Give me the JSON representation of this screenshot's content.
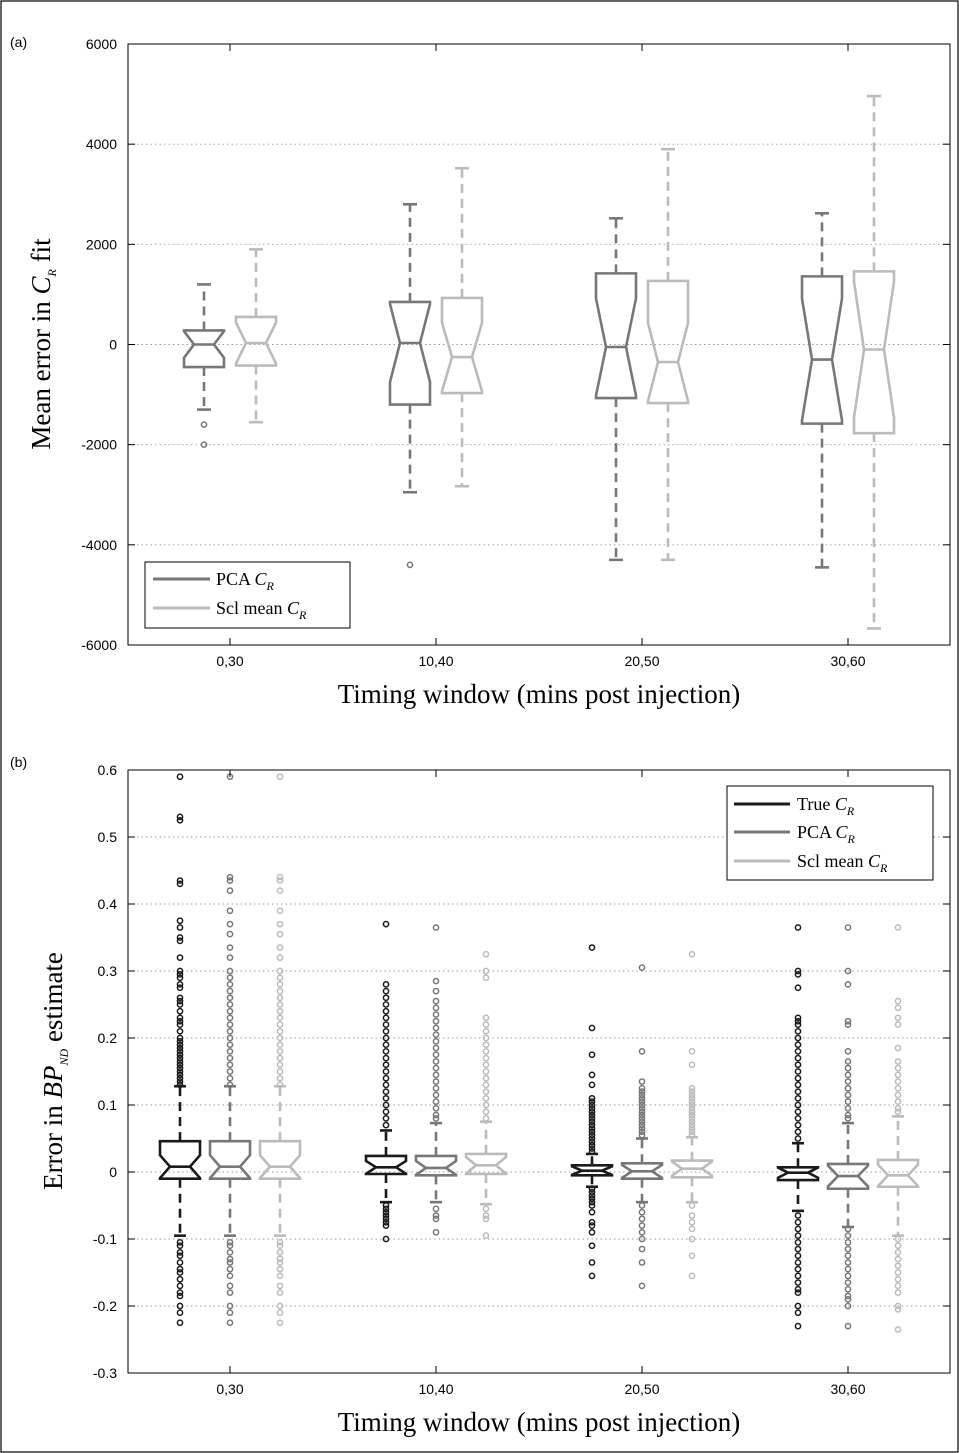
{
  "chart_data": [
    {
      "panel_label": "(a)",
      "type": "boxplot",
      "notched": true,
      "categories": [
        "0,30",
        "10,40",
        "20,50",
        "30,60"
      ],
      "xlabel": "Timing window (mins post injection)",
      "ylabel": {
        "prefix": "Mean error in ",
        "italic": "C",
        "sub": "R",
        "suffix": " fit"
      },
      "ylim": [
        -6000,
        6000
      ],
      "yticks": [
        6000,
        4000,
        2000,
        0,
        -2000,
        -4000,
        -6000
      ],
      "ytick_labels": [
        "6000",
        "4000",
        "2000",
        "0",
        "-2000",
        "-4000",
        "-6000"
      ],
      "grid": "horizontal dotted",
      "legend_position": "bottom-left",
      "legend": [
        {
          "prefix": "PCA ",
          "italic": "C",
          "sub": "R",
          "color": "#777777"
        },
        {
          "prefix": "Scl mean ",
          "italic": "C",
          "sub": "R",
          "color": "#bbbbbb"
        }
      ],
      "series": [
        {
          "color": "#777777",
          "boxes": [
            {
              "whisker_low": -1300,
              "q1": -450,
              "median": 0,
              "q3": 280,
              "whisker_high": 1200,
              "outliers": [
                -1600,
                -2000
              ]
            },
            {
              "whisker_low": -2950,
              "q1": -1200,
              "median": 30,
              "q3": 850,
              "whisker_high": 2800,
              "outliers": [
                -4400
              ]
            },
            {
              "whisker_low": -4300,
              "q1": -1070,
              "median": -50,
              "q3": 1420,
              "whisker_high": 2520,
              "outliers": []
            },
            {
              "whisker_low": -4450,
              "q1": -1580,
              "median": -300,
              "q3": 1360,
              "whisker_high": 2620,
              "outliers": []
            }
          ]
        },
        {
          "color": "#bbbbbb",
          "boxes": [
            {
              "whisker_low": -1550,
              "q1": -420,
              "median": 30,
              "q3": 550,
              "whisker_high": 1900,
              "outliers": []
            },
            {
              "whisker_low": -2830,
              "q1": -970,
              "median": -250,
              "q3": 930,
              "whisker_high": 3520,
              "outliers": []
            },
            {
              "whisker_low": -4300,
              "q1": -1170,
              "median": -350,
              "q3": 1270,
              "whisker_high": 3900,
              "outliers": []
            },
            {
              "whisker_low": -5670,
              "q1": -1770,
              "median": -100,
              "q3": 1460,
              "whisker_high": 4960,
              "outliers": []
            }
          ]
        }
      ]
    },
    {
      "panel_label": "(b)",
      "type": "boxplot",
      "notched": true,
      "categories": [
        "0,30",
        "10,40",
        "20,50",
        "30,60"
      ],
      "xlabel": "Timing window (mins post injection)",
      "ylabel": {
        "prefix": "Error in ",
        "italic": "BP",
        "sub": "ND",
        "suffix": " estimate"
      },
      "ylim": [
        -0.3,
        0.6
      ],
      "yticks": [
        0.6,
        0.5,
        0.4,
        0.3,
        0.2,
        0.1,
        0,
        -0.1,
        -0.2,
        -0.3
      ],
      "ytick_labels": [
        "0.6",
        "0.5",
        "0.4",
        "0.3",
        "0.2",
        "0.1",
        "0",
        "-0.1",
        "-0.2",
        "-0.3"
      ],
      "grid": "horizontal dotted",
      "legend_position": "top-right",
      "legend": [
        {
          "prefix": "True ",
          "italic": "C",
          "sub": "R",
          "color": "#1a1a1a"
        },
        {
          "prefix": "PCA ",
          "italic": "C",
          "sub": "R",
          "color": "#777777"
        },
        {
          "prefix": "Scl mean ",
          "italic": "C",
          "sub": "R",
          "color": "#bbbbbb"
        }
      ],
      "series": [
        {
          "color": "#1a1a1a",
          "boxes": [
            {
              "whisker_low": -0.095,
              "q1": -0.01,
              "median": 0.008,
              "q3": 0.046,
              "whisker_high": 0.128,
              "outliers_high": [
                0.59,
                0.53,
                0.525,
                0.435,
                0.43,
                0.375,
                0.365,
                0.35,
                0.345,
                0.32,
                0.3,
                0.295,
                0.29,
                0.28,
                0.275,
                0.26,
                0.255,
                0.25,
                0.24,
                0.23,
                0.225,
                0.22,
                0.21,
                0.2,
                0.195,
                0.19,
                0.185,
                0.18,
                0.175,
                0.17,
                0.165,
                0.16,
                0.155,
                0.15,
                0.145,
                0.14,
                0.135,
                0.13
              ],
              "outliers_low": [
                -0.105,
                -0.11,
                -0.12,
                -0.125,
                -0.135,
                -0.145,
                -0.15,
                -0.16,
                -0.17,
                -0.18,
                -0.185,
                -0.2,
                -0.21,
                -0.225
              ]
            },
            {
              "whisker_low": -0.045,
              "q1": -0.003,
              "median": 0.007,
              "q3": 0.024,
              "whisker_high": 0.062,
              "outliers_high": [
                0.37,
                0.28,
                0.27,
                0.26,
                0.25,
                0.24,
                0.23,
                0.22,
                0.21,
                0.2,
                0.19,
                0.18,
                0.17,
                0.16,
                0.15,
                0.14,
                0.13,
                0.12,
                0.11,
                0.1,
                0.09,
                0.08,
                0.07
              ],
              "outliers_low": [
                -0.05,
                -0.055,
                -0.06,
                -0.065,
                -0.07,
                -0.075,
                -0.08,
                -0.1
              ]
            },
            {
              "whisker_low": -0.022,
              "q1": -0.005,
              "median": 0.002,
              "q3": 0.01,
              "whisker_high": 0.027,
              "outliers_high": [
                0.335,
                0.215,
                0.175,
                0.145,
                0.13,
                0.11,
                0.105,
                0.1,
                0.095,
                0.09,
                0.085,
                0.08,
                0.075,
                0.07,
                0.065,
                0.06,
                0.055,
                0.05,
                0.045,
                0.04,
                0.035,
                0.03
              ],
              "outliers_low": [
                -0.025,
                -0.03,
                -0.035,
                -0.04,
                -0.045,
                -0.05,
                -0.06,
                -0.075,
                -0.08,
                -0.09,
                -0.11,
                -0.135,
                -0.155
              ]
            },
            {
              "whisker_low": -0.058,
              "q1": -0.012,
              "median": -0.001,
              "q3": 0.007,
              "whisker_high": 0.043,
              "outliers_high": [
                0.365,
                0.3,
                0.295,
                0.275,
                0.23,
                0.225,
                0.22,
                0.21,
                0.2,
                0.19,
                0.18,
                0.17,
                0.16,
                0.15,
                0.14,
                0.13,
                0.12,
                0.11,
                0.1,
                0.09,
                0.08,
                0.07,
                0.06,
                0.05
              ],
              "outliers_low": [
                -0.065,
                -0.075,
                -0.085,
                -0.095,
                -0.105,
                -0.115,
                -0.125,
                -0.135,
                -0.145,
                -0.155,
                -0.165,
                -0.175,
                -0.18,
                -0.2,
                -0.21,
                -0.23
              ]
            }
          ]
        },
        {
          "color": "#777777",
          "boxes": [
            {
              "whisker_low": -0.095,
              "q1": -0.01,
              "median": 0.008,
              "q3": 0.046,
              "whisker_high": 0.128,
              "outliers_high": [
                0.59,
                0.44,
                0.435,
                0.42,
                0.39,
                0.37,
                0.355,
                0.335,
                0.32,
                0.3,
                0.29,
                0.28,
                0.27,
                0.26,
                0.25,
                0.24,
                0.23,
                0.22,
                0.21,
                0.2,
                0.19,
                0.18,
                0.17,
                0.16,
                0.15,
                0.14,
                0.13
              ],
              "outliers_low": [
                -0.105,
                -0.11,
                -0.12,
                -0.13,
                -0.135,
                -0.145,
                -0.155,
                -0.17,
                -0.18,
                -0.2,
                -0.21,
                -0.225
              ]
            },
            {
              "whisker_low": -0.045,
              "q1": -0.005,
              "median": 0.006,
              "q3": 0.024,
              "whisker_high": 0.073,
              "outliers_high": [
                0.365,
                0.285,
                0.27,
                0.255,
                0.245,
                0.235,
                0.225,
                0.215,
                0.205,
                0.195,
                0.185,
                0.175,
                0.165,
                0.155,
                0.145,
                0.135,
                0.125,
                0.115,
                0.105,
                0.095,
                0.085,
                0.08
              ],
              "outliers_low": [
                -0.055,
                -0.065,
                -0.07,
                -0.09
              ]
            },
            {
              "whisker_low": -0.045,
              "q1": -0.01,
              "median": 0.001,
              "q3": 0.013,
              "whisker_high": 0.05,
              "outliers_high": [
                0.305,
                0.18,
                0.135,
                0.125,
                0.12,
                0.115,
                0.11,
                0.105,
                0.1,
                0.095,
                0.09,
                0.085,
                0.08,
                0.075,
                0.07,
                0.065,
                0.06,
                0.055
              ],
              "outliers_low": [
                -0.05,
                -0.06,
                -0.07,
                -0.08,
                -0.09,
                -0.1,
                -0.115,
                -0.135,
                -0.17
              ]
            },
            {
              "whisker_low": -0.082,
              "q1": -0.025,
              "median": -0.006,
              "q3": 0.012,
              "whisker_high": 0.073,
              "outliers_high": [
                0.365,
                0.3,
                0.28,
                0.225,
                0.22,
                0.18,
                0.165,
                0.155,
                0.145,
                0.135,
                0.125,
                0.115,
                0.105,
                0.095,
                0.085,
                0.08
              ],
              "outliers_low": [
                -0.085,
                -0.095,
                -0.105,
                -0.115,
                -0.125,
                -0.135,
                -0.145,
                -0.155,
                -0.165,
                -0.175,
                -0.185,
                -0.19,
                -0.2,
                -0.23
              ]
            }
          ]
        },
        {
          "color": "#bbbbbb",
          "boxes": [
            {
              "whisker_low": -0.095,
              "q1": -0.01,
              "median": 0.008,
              "q3": 0.046,
              "whisker_high": 0.128,
              "outliers_high": [
                0.59,
                0.44,
                0.435,
                0.42,
                0.39,
                0.37,
                0.355,
                0.335,
                0.32,
                0.3,
                0.29,
                0.28,
                0.27,
                0.26,
                0.25,
                0.24,
                0.23,
                0.22,
                0.21,
                0.2,
                0.19,
                0.18,
                0.17,
                0.16,
                0.15,
                0.14,
                0.13
              ],
              "outliers_low": [
                -0.105,
                -0.11,
                -0.12,
                -0.13,
                -0.135,
                -0.145,
                -0.155,
                -0.17,
                -0.18,
                -0.2,
                -0.21,
                -0.225
              ]
            },
            {
              "whisker_low": -0.048,
              "q1": -0.003,
              "median": 0.01,
              "q3": 0.027,
              "whisker_high": 0.075,
              "outliers_high": [
                0.325,
                0.3,
                0.29,
                0.23,
                0.22,
                0.21,
                0.2,
                0.19,
                0.18,
                0.17,
                0.16,
                0.15,
                0.14,
                0.13,
                0.12,
                0.11,
                0.1,
                0.09,
                0.08
              ],
              "outliers_low": [
                -0.055,
                -0.065,
                -0.07,
                -0.095
              ]
            },
            {
              "whisker_low": -0.045,
              "q1": -0.008,
              "median": 0.005,
              "q3": 0.017,
              "whisker_high": 0.052,
              "outliers_high": [
                0.325,
                0.18,
                0.16,
                0.125,
                0.12,
                0.115,
                0.11,
                0.105,
                0.1,
                0.095,
                0.09,
                0.085,
                0.08,
                0.075,
                0.07,
                0.065,
                0.06,
                0.055
              ],
              "outliers_low": [
                -0.05,
                -0.065,
                -0.075,
                -0.085,
                -0.1,
                -0.125,
                -0.155
              ]
            },
            {
              "whisker_low": -0.095,
              "q1": -0.022,
              "median": -0.005,
              "q3": 0.018,
              "whisker_high": 0.083,
              "outliers_high": [
                0.365,
                0.255,
                0.245,
                0.23,
                0.22,
                0.185,
                0.165,
                0.155,
                0.145,
                0.135,
                0.125,
                0.115,
                0.105,
                0.095,
                0.09
              ],
              "outliers_low": [
                -0.1,
                -0.11,
                -0.12,
                -0.13,
                -0.14,
                -0.15,
                -0.16,
                -0.17,
                -0.18,
                -0.2,
                -0.205,
                -0.235
              ]
            }
          ]
        }
      ]
    }
  ]
}
